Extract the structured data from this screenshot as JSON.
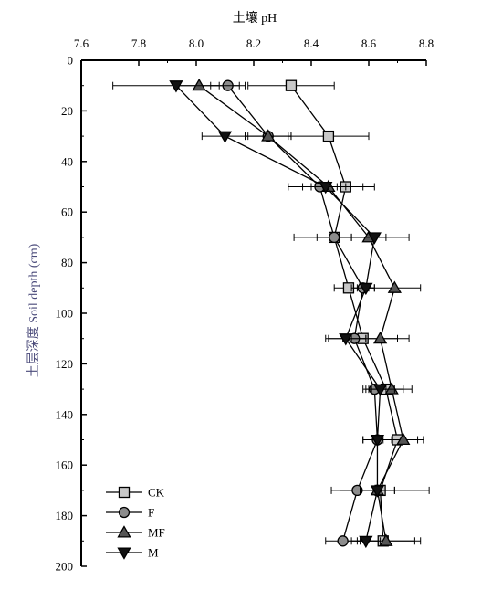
{
  "chart_data": {
    "type": "line",
    "title": "",
    "xlabel": "土壤 pH",
    "ylabel": "土层深度 Soil depth (cm)",
    "xlim": [
      7.6,
      8.8
    ],
    "ylim": [
      0,
      200
    ],
    "x_axis_position": "top",
    "y_axis_inverted": true,
    "x_ticks": [
      "7.6",
      "7.8",
      "8.0",
      "8.2",
      "8.4",
      "8.6",
      "8.8"
    ],
    "y_ticks": [
      "0",
      "20",
      "40",
      "60",
      "80",
      "100",
      "120",
      "140",
      "160",
      "180",
      "200"
    ],
    "grid": false,
    "legend_position": "bottom-left",
    "depths": [
      10,
      30,
      50,
      70,
      90,
      110,
      130,
      150,
      170,
      190
    ],
    "series": [
      {
        "name": "CK",
        "marker": "square",
        "fill": "#c8c8c8",
        "x": [
          8.33,
          8.46,
          8.52,
          8.48,
          8.53,
          8.58,
          8.66,
          8.7,
          8.64,
          8.65
        ],
        "err": [
          0.15,
          0.14,
          0.1,
          0.14,
          0.05,
          0.12,
          0.06,
          0.07,
          0.17,
          0.13
        ]
      },
      {
        "name": "F",
        "marker": "circle",
        "fill": "#8c8c8c",
        "x": [
          8.11,
          8.25,
          8.43,
          8.48,
          8.58,
          8.55,
          8.62,
          8.63,
          8.56,
          8.51
        ],
        "err": [
          0.06,
          0.08,
          0.06,
          0.06,
          0.04,
          0.04,
          0.04,
          0.05,
          0.06,
          0.06
        ]
      },
      {
        "name": "MF",
        "marker": "triangle-up",
        "fill": "#555555",
        "x": [
          8.01,
          8.25,
          8.46,
          8.6,
          8.69,
          8.64,
          8.68,
          8.72,
          8.63,
          8.66
        ],
        "err": [
          0.07,
          0.08,
          0.06,
          0.06,
          0.09,
          0.1,
          0.07,
          0.07,
          0.06,
          0.1
        ]
      },
      {
        "name": "M",
        "marker": "triangle-down",
        "fill": "#111111",
        "x": [
          7.93,
          8.1,
          8.45,
          8.62,
          8.59,
          8.52,
          8.64,
          8.63,
          8.63,
          8.59
        ],
        "err": [
          0.22,
          0.08,
          0.13,
          0.12,
          0.03,
          0.07,
          0.05,
          0.05,
          0.06,
          0.05
        ]
      }
    ]
  }
}
